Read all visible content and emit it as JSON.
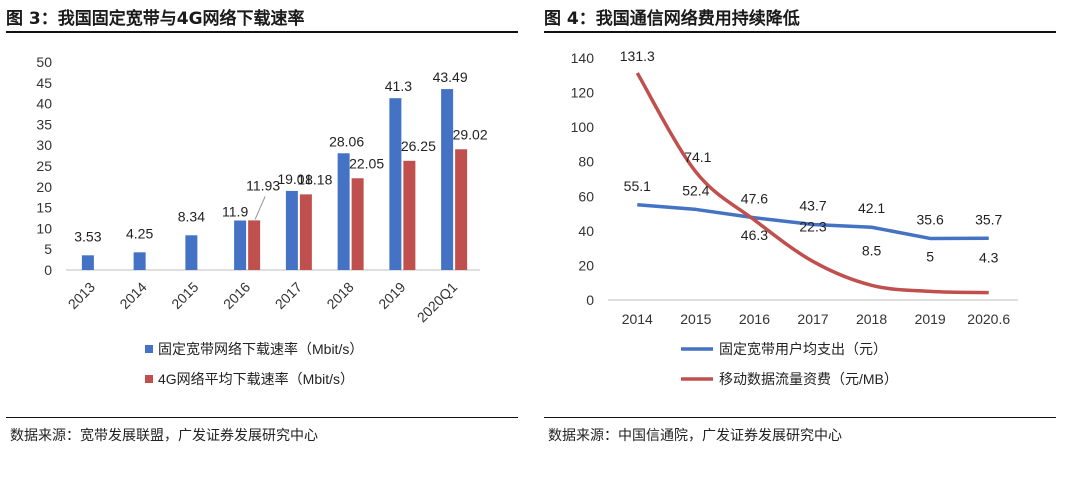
{
  "left_panel": {
    "title": "图 3：我国固定宽带与4G网络下载速率",
    "source": "数据来源：宽带发展联盟，广发证券发展研究中心"
  },
  "right_panel": {
    "title": "图 4：我国通信网络费用持续降低",
    "source": "数据来源：中国信通院，广发证券发展研究中心"
  },
  "colors": {
    "blue": "#4472c4",
    "red": "#c0504d"
  },
  "chart_data": [
    {
      "type": "bar",
      "categories": [
        "2013",
        "2014",
        "2015",
        "2016",
        "2017",
        "2018",
        "2019",
        "2020Q1"
      ],
      "series": [
        {
          "name": "固定宽带网络下载速率（Mbit/s）",
          "values": [
            3.53,
            4.25,
            8.34,
            11.9,
            19.01,
            28.06,
            41.3,
            43.49
          ],
          "labels": [
            "3.53",
            "4.25",
            "8.34",
            "11.9",
            "19.01",
            "28.06",
            "41.3",
            "43.49"
          ]
        },
        {
          "name": "4G网络平均下载速率（Mbit/s）",
          "values": [
            null,
            null,
            null,
            11.93,
            18.18,
            22.05,
            26.25,
            29.02
          ],
          "labels": [
            "",
            "",
            "",
            "11.93",
            "18.18",
            "22.05",
            "26.25",
            "29.02"
          ]
        }
      ],
      "yticks": [
        "0",
        "5",
        "10",
        "15",
        "20",
        "25",
        "30",
        "35",
        "40",
        "45",
        "50"
      ],
      "ylim": [
        0,
        50
      ],
      "legend_position": "bottom"
    },
    {
      "type": "line",
      "categories": [
        "2014",
        "2015",
        "2016",
        "2017",
        "2018",
        "2019",
        "2020.6"
      ],
      "series": [
        {
          "name": "固定宽带用户均支出（元）",
          "values": [
            55.1,
            52.4,
            47.6,
            43.7,
            42.1,
            35.6,
            35.7
          ],
          "labels": [
            "55.1",
            "52.4",
            "47.6",
            "43.7",
            "42.1",
            "35.6",
            "35.7"
          ]
        },
        {
          "name": "移动数据流量资费（元/MB）",
          "values": [
            131.3,
            74.1,
            46.3,
            22.3,
            8.5,
            5,
            4.3
          ],
          "labels": [
            "131.3",
            "74.1",
            "46.3",
            "22.3",
            "8.5",
            "5",
            "4.3"
          ]
        }
      ],
      "yticks": [
        "0",
        "20",
        "40",
        "60",
        "80",
        "100",
        "120",
        "140"
      ],
      "ylim": [
        0,
        140
      ],
      "legend_position": "bottom"
    }
  ]
}
